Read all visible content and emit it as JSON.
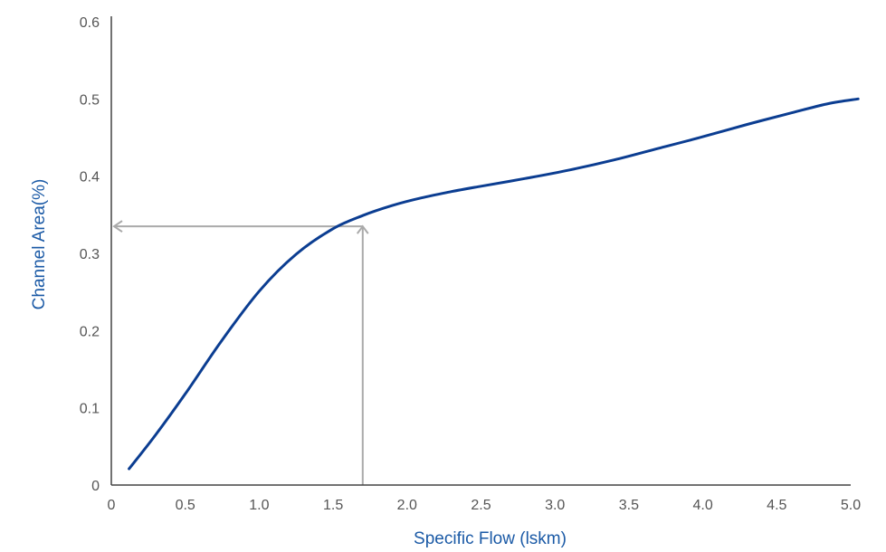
{
  "chart_data": {
    "type": "line",
    "title": "",
    "xlabel": "Specific Flow (lskm)",
    "ylabel": "Channel Area(%)",
    "xlim": [
      0,
      5.0
    ],
    "ylim": [
      0,
      0.6
    ],
    "x_ticks": [
      "0",
      "0.5",
      "1.0",
      "1.5",
      "2.0",
      "2.5",
      "3.0",
      "3.5",
      "4.0",
      "4.5",
      "5.0"
    ],
    "x_tick_values": [
      0,
      0.5,
      1.0,
      1.5,
      2.0,
      2.5,
      3.0,
      3.5,
      4.0,
      4.5,
      5.0
    ],
    "y_ticks": [
      "0",
      "0.1",
      "0.2",
      "0.3",
      "0.4",
      "0.5",
      "0.6"
    ],
    "y_tick_values": [
      0,
      0.1,
      0.2,
      0.3,
      0.4,
      0.5,
      0.6
    ],
    "grid": false,
    "legend": "none",
    "series": [
      {
        "x": [
          0.12,
          0.3,
          0.5,
          0.75,
          1.0,
          1.25,
          1.5,
          1.7,
          1.9,
          2.1,
          2.3,
          2.5,
          2.8,
          3.1,
          3.4,
          3.7,
          4.0,
          4.3,
          4.6,
          4.85,
          5.05
        ],
        "y": [
          0.021,
          0.065,
          0.118,
          0.188,
          0.251,
          0.299,
          0.332,
          0.349,
          0.362,
          0.372,
          0.38,
          0.387,
          0.397,
          0.408,
          0.421,
          0.436,
          0.451,
          0.467,
          0.482,
          0.494,
          0.5
        ]
      }
    ],
    "annotations": [
      {
        "type": "arrow-guide",
        "x": 1.7,
        "y": 0.335
      }
    ],
    "colors": {
      "line": "#0b3d91",
      "axis_title": "#1b5aa6",
      "tick_label": "#555555",
      "axis": "#444444",
      "guide": "#aaaaaa"
    }
  }
}
